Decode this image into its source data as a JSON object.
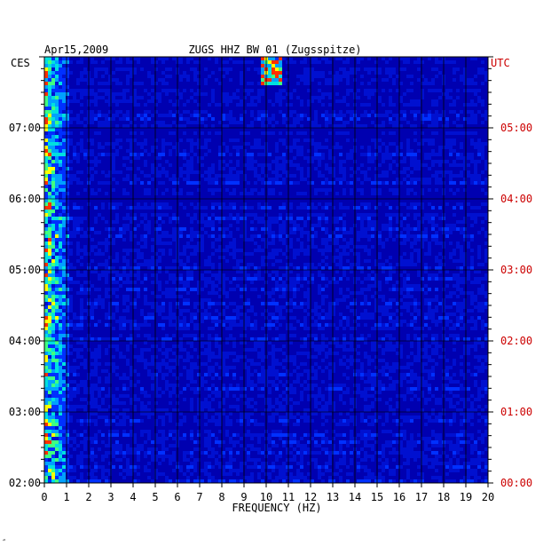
{
  "chart_data": {
    "type": "heatmap",
    "date_label": "Apr15,2009",
    "title": "ZUGS HHZ BW 01 (Zugsspitze)",
    "xlabel": "FREQUENCY (HZ)",
    "xlim": [
      0,
      20
    ],
    "x_ticks": [
      "0",
      "1",
      "2",
      "3",
      "4",
      "5",
      "6",
      "7",
      "8",
      "9",
      "10",
      "11",
      "12",
      "13",
      "14",
      "15",
      "16",
      "17",
      "18",
      "19",
      "20"
    ],
    "left_axis_label": "CES",
    "right_axis_label": "UTC",
    "left_ticks": [
      "07:00",
      "06:00",
      "05:00",
      "04:00",
      "03:00",
      "02:00"
    ],
    "right_ticks": [
      "05:00",
      "04:00",
      "03:00",
      "02:00",
      "01:00",
      "00:00"
    ],
    "ylim_utc_hours": [
      0,
      6
    ],
    "colors": {
      "low": "#0000b0",
      "mid": "#00a0ff",
      "high": "#40ff80",
      "peak": "#ffff00",
      "extreme": "#ff3000",
      "axis": "#000000",
      "utc": "#cc0000"
    },
    "energy_profile": "strongest below 1 Hz, scattered bursts across band, spike near 10-10.5 Hz at top"
  },
  "footer_mark": "″"
}
